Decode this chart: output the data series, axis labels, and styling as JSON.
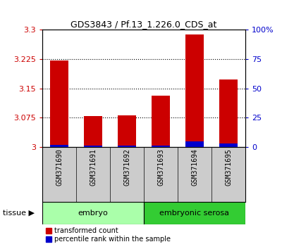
{
  "title": "GDS3843 / Pf.13_1.226.0_CDS_at",
  "samples": [
    "GSM371690",
    "GSM371691",
    "GSM371692",
    "GSM371693",
    "GSM371694",
    "GSM371695"
  ],
  "red_values": [
    3.221,
    3.079,
    3.081,
    3.132,
    3.289,
    3.172
  ],
  "blue_values": [
    2.0,
    1.0,
    1.0,
    1.0,
    4.5,
    3.0
  ],
  "ylim_left": [
    3.0,
    3.3
  ],
  "ylim_right": [
    0,
    100
  ],
  "yticks_left": [
    3.0,
    3.075,
    3.15,
    3.225,
    3.3
  ],
  "ytick_labels_left": [
    "3",
    "3.075",
    "3.15",
    "3.225",
    "3.3"
  ],
  "yticks_right": [
    0,
    25,
    50,
    75,
    100
  ],
  "ytick_labels_right": [
    "0",
    "25",
    "50",
    "75",
    "100%"
  ],
  "group0_label": "embryo",
  "group0_color": "#aaffaa",
  "group0_samples": [
    0,
    1,
    2
  ],
  "group1_label": "embryonic serosa",
  "group1_color": "#33cc33",
  "group1_samples": [
    3,
    4,
    5
  ],
  "bar_width": 0.55,
  "red_color": "#cc0000",
  "blue_color": "#0000cc",
  "bg_color": "#ffffff",
  "sample_bg_color": "#cccccc",
  "grid_linestyle": ":",
  "grid_color": "black",
  "grid_linewidth": 0.8
}
